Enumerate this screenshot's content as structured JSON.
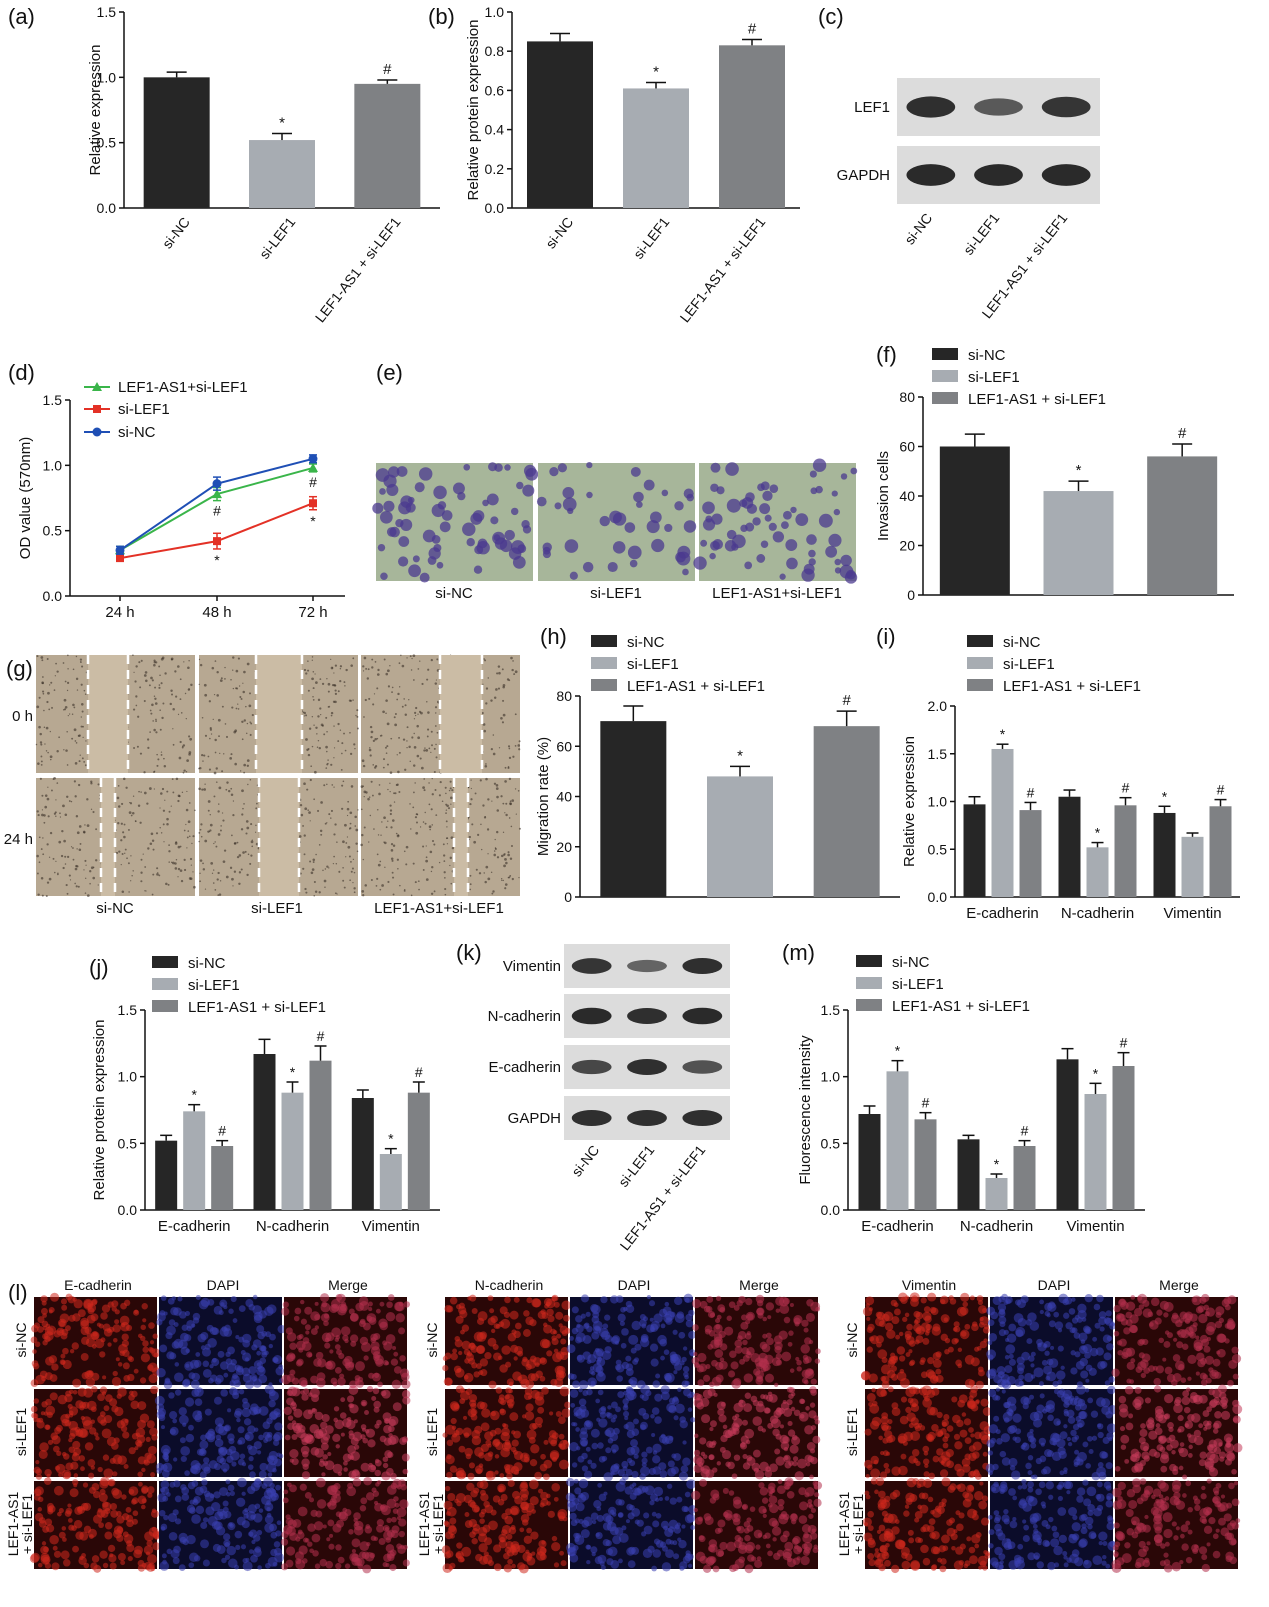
{
  "colors": {
    "dark": "#262626",
    "light": "#a7acb2",
    "mid": "#7f8184",
    "blue": "#1f4fb5",
    "red": "#e33126",
    "green": "#3ab54a",
    "micro_bg": "#a7b69a",
    "stain": "#4b3a8f",
    "scratch_bg": "#b7a892",
    "wb_bg": "#dcdcdc",
    "band": "#1a1a1a",
    "if_red": "#a0201a",
    "if_blue": "#1c1f6e"
  },
  "panel_letters": {
    "a": "(a)",
    "b": "(b)",
    "c": "(c)",
    "d": "(d)",
    "e": "(e)",
    "f": "(f)",
    "g": "(g)",
    "h": "(h)",
    "i": "(i)",
    "j": "(j)",
    "k": "(k)",
    "l": "(l)",
    "m": "(m)"
  },
  "chart_data": [
    {
      "panel": "a",
      "type": "bar",
      "ylabel": "Relative expression",
      "ylim": [
        0,
        1.5
      ],
      "yticks": [
        "0.0",
        "0.5",
        "1.0",
        "1.5"
      ],
      "categories": [
        "si-NC",
        "si-LEF1",
        "LEF1-AS1 + si-LEF1"
      ],
      "values": [
        1.0,
        0.52,
        0.95
      ],
      "errors": [
        0.04,
        0.05,
        0.03
      ],
      "marks": [
        "",
        "*",
        "#"
      ]
    },
    {
      "panel": "b",
      "type": "bar",
      "ylabel": "Relative protein expression",
      "ylim": [
        0,
        1.0
      ],
      "yticks": [
        "0.0",
        "0.2",
        "0.4",
        "0.6",
        "0.8",
        "1.0"
      ],
      "categories": [
        "si-NC",
        "si-LEF1",
        "LEF1-AS1 + si-LEF1"
      ],
      "values": [
        0.85,
        0.61,
        0.83
      ],
      "errors": [
        0.04,
        0.03,
        0.03
      ],
      "marks": [
        "",
        "*",
        "#"
      ]
    },
    {
      "panel": "d",
      "type": "line",
      "ylabel": "OD value (570nm)",
      "ylim": [
        0,
        1.5
      ],
      "yticks": [
        "0.0",
        "0.5",
        "1.0",
        "1.5"
      ],
      "x": [
        "24 h",
        "48 h",
        "72 h"
      ],
      "series": [
        {
          "name": "LEF1-AS1+si-LEF1",
          "values": [
            0.35,
            0.78,
            0.98
          ],
          "errors": [
            0.03,
            0.05,
            0.03
          ],
          "marks": [
            "",
            "#",
            "#"
          ]
        },
        {
          "name": "si-LEF1",
          "values": [
            0.29,
            0.42,
            0.71
          ],
          "errors": [
            0.02,
            0.06,
            0.05
          ],
          "marks": [
            "",
            "*",
            "*"
          ]
        },
        {
          "name": "si-NC",
          "values": [
            0.35,
            0.86,
            1.05
          ],
          "errors": [
            0.03,
            0.05,
            0.03
          ],
          "marks": [
            "",
            "",
            ""
          ]
        }
      ]
    },
    {
      "panel": "f",
      "type": "bar",
      "ylabel": "Invasion cells",
      "ylim": [
        0,
        80
      ],
      "yticks": [
        "0",
        "20",
        "40",
        "60",
        "80"
      ],
      "categories": [
        "si-NC",
        "si-LEF1",
        "LEF1-AS1 + si-LEF1"
      ],
      "values": [
        60,
        42,
        56
      ],
      "errors": [
        5,
        4,
        5
      ],
      "marks": [
        "",
        "*",
        "#"
      ]
    },
    {
      "panel": "h",
      "type": "bar",
      "ylabel": "Migration rate (%)",
      "ylim": [
        0,
        80
      ],
      "yticks": [
        "0",
        "20",
        "40",
        "60",
        "80"
      ],
      "categories": [
        "si-NC",
        "si-LEF1",
        "LEF1-AS1 + si-LEF1"
      ],
      "values": [
        70,
        48,
        68
      ],
      "errors": [
        6,
        4,
        6
      ],
      "marks": [
        "",
        "*",
        "#"
      ]
    },
    {
      "panel": "i",
      "type": "grouped-bar",
      "ylabel": "Relative expression",
      "ylim": [
        0,
        2.0
      ],
      "yticks": [
        "0.0",
        "0.5",
        "1.0",
        "1.5",
        "2.0"
      ],
      "categories": [
        "E-cadherin",
        "N-cadherin",
        "Vimentin"
      ],
      "series": [
        {
          "name": "si-NC",
          "values": [
            0.97,
            1.05,
            0.88
          ],
          "errors": [
            0.08,
            0.07,
            0.07
          ],
          "marks": [
            "",
            "",
            "*"
          ]
        },
        {
          "name": "si-LEF1",
          "values": [
            1.55,
            0.52,
            0.63
          ],
          "errors": [
            0.05,
            0.05,
            0.04
          ],
          "marks": [
            "*",
            "*",
            ""
          ]
        },
        {
          "name": "LEF1-AS1 + si-LEF1",
          "values": [
            0.91,
            0.96,
            0.95
          ],
          "errors": [
            0.08,
            0.08,
            0.07
          ],
          "marks": [
            "#",
            "#",
            "#"
          ]
        }
      ]
    },
    {
      "panel": "j",
      "type": "grouped-bar",
      "ylabel": "Relative protein expression",
      "ylim": [
        0,
        1.5
      ],
      "yticks": [
        "0.0",
        "0.5",
        "1.0",
        "1.5"
      ],
      "categories": [
        "E-cadherin",
        "N-cadherin",
        "Vimentin"
      ],
      "series": [
        {
          "name": "si-NC",
          "values": [
            0.52,
            1.17,
            0.84
          ],
          "errors": [
            0.04,
            0.11,
            0.06
          ],
          "marks": [
            "",
            "",
            ""
          ]
        },
        {
          "name": "si-LEF1",
          "values": [
            0.74,
            0.88,
            0.42
          ],
          "errors": [
            0.05,
            0.08,
            0.04
          ],
          "marks": [
            "*",
            "*",
            "*"
          ]
        },
        {
          "name": "LEF1-AS1 + si-LEF1",
          "values": [
            0.48,
            1.12,
            0.88
          ],
          "errors": [
            0.04,
            0.11,
            0.08
          ],
          "marks": [
            "#",
            "#",
            "#"
          ]
        }
      ]
    },
    {
      "panel": "m",
      "type": "grouped-bar",
      "ylabel": "Fluorescence intensity",
      "ylim": [
        0,
        1.5
      ],
      "yticks": [
        "0.0",
        "0.5",
        "1.0",
        "1.5"
      ],
      "categories": [
        "E-cadherin",
        "N-cadherin",
        "Vimentin"
      ],
      "series": [
        {
          "name": "si-NC",
          "values": [
            0.72,
            0.53,
            1.13
          ],
          "errors": [
            0.06,
            0.03,
            0.08
          ],
          "marks": [
            "",
            "",
            ""
          ]
        },
        {
          "name": "si-LEF1",
          "values": [
            1.04,
            0.24,
            0.87
          ],
          "errors": [
            0.08,
            0.03,
            0.08
          ],
          "marks": [
            "*",
            "*",
            "*"
          ]
        },
        {
          "name": "LEF1-AS1 + si-LEF1",
          "values": [
            0.68,
            0.48,
            1.08
          ],
          "errors": [
            0.05,
            0.04,
            0.1
          ],
          "marks": [
            "#",
            "#",
            "#"
          ]
        }
      ]
    }
  ],
  "legend_f": [
    "si-NC",
    "si-LEF1",
    "LEF1-AS1 + si-LEF1"
  ],
  "legend_d": [
    "LEF1-AS1+si-LEF1",
    "si-LEF1",
    "si-NC"
  ],
  "western_c": {
    "rows": [
      "LEF1",
      "GAPDH"
    ],
    "lanes": [
      "si-NC",
      "si-LEF1",
      "LEF1-AS1 + si-LEF1"
    ]
  },
  "western_k": {
    "rows": [
      "Vimentin",
      "N-cadherin",
      "E-cadherin",
      "GAPDH"
    ],
    "lanes": [
      "si-NC",
      "si-LEF1",
      "LEF1-AS1 + si-LEF1"
    ]
  },
  "panel_e": {
    "labels": [
      "si-NC",
      "si-LEF1",
      "LEF1-AS1+si-LEF1"
    ]
  },
  "panel_g": {
    "rows": [
      "0 h",
      "24 h"
    ],
    "labels": [
      "si-NC",
      "si-LEF1",
      "LEF1-AS1+si-LEF1"
    ]
  },
  "panel_l": {
    "groups": [
      {
        "marker": "E-cadherin"
      },
      {
        "marker": "N-cadherin"
      },
      {
        "marker": "Vimentin"
      }
    ],
    "dapi": "DAPI",
    "merge": "Merge",
    "rows": [
      "si-NC",
      "si-LEF1",
      "LEF1-AS1 + si-LEF1"
    ],
    "row3_lines": [
      "LEF1-AS1",
      "+ si-LEF1"
    ]
  }
}
